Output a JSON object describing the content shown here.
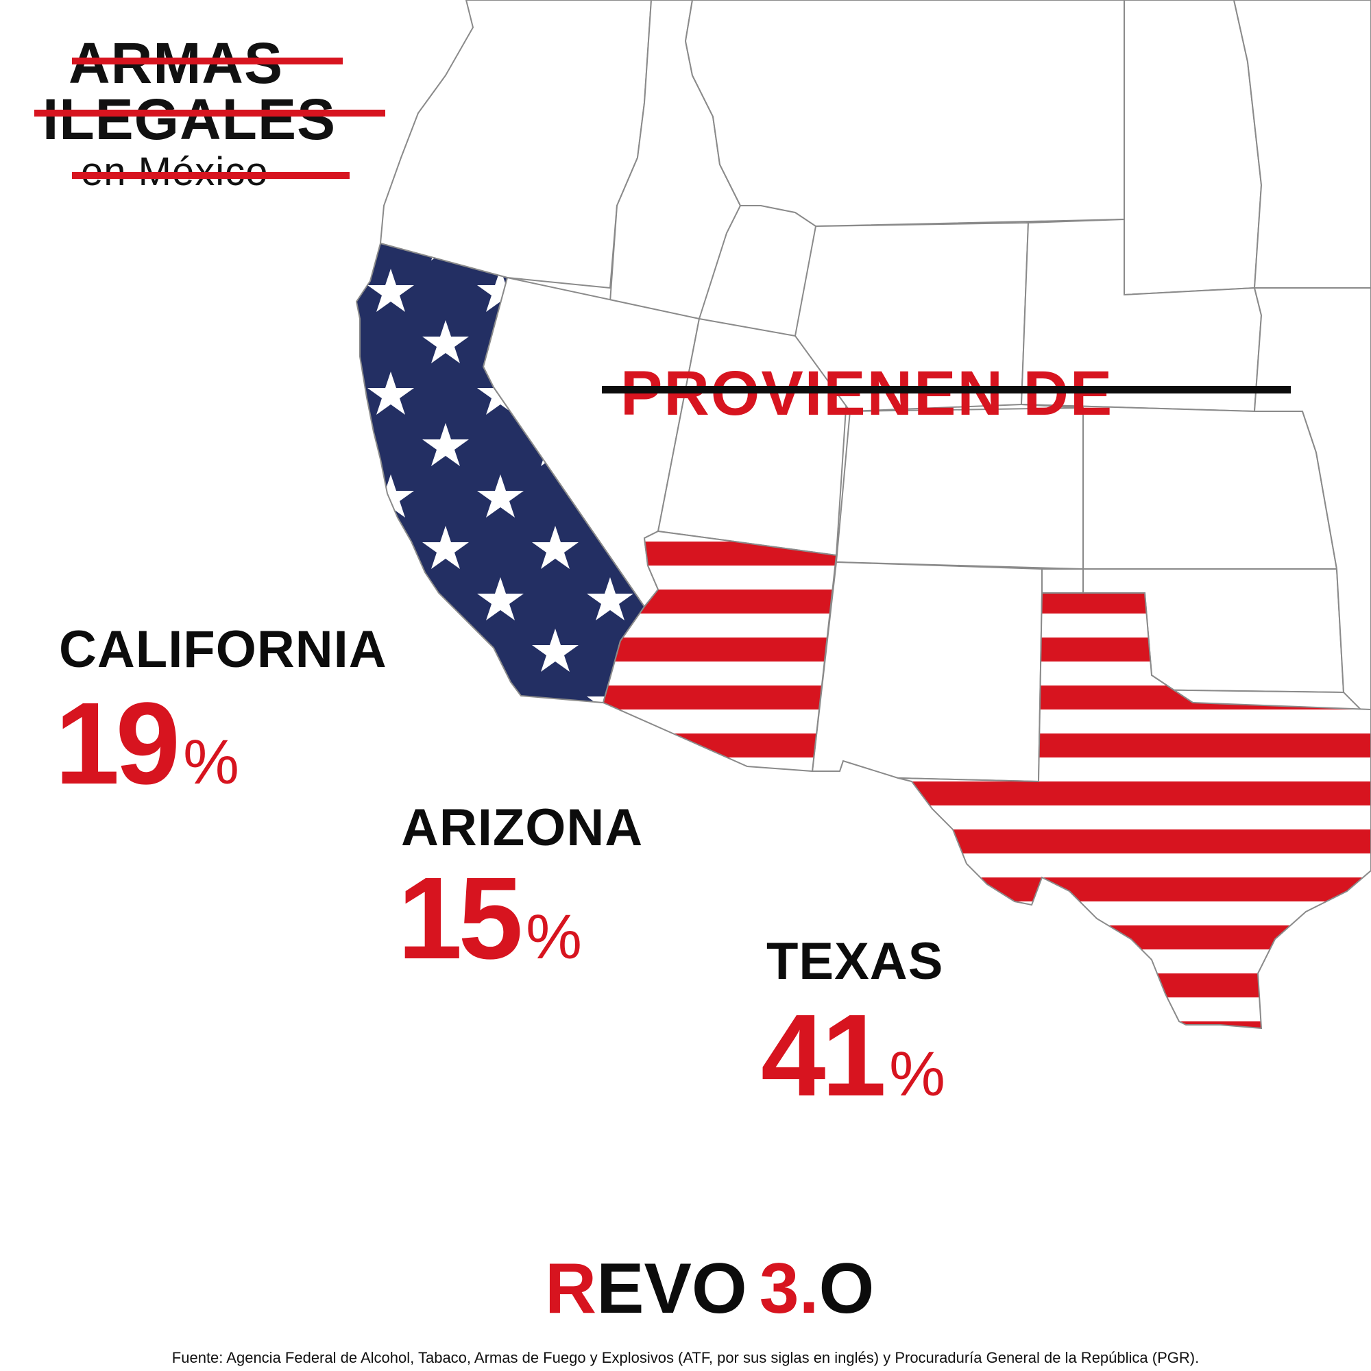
{
  "colors": {
    "red": "#d7141f",
    "navy": "#232f63",
    "black": "#111111",
    "state_border": "#8a8a8a",
    "white": "#ffffff"
  },
  "title": {
    "line1": "ARMAS",
    "line2": "ILEGALES",
    "line3": "en México"
  },
  "subtitle": "PROVIENEN DE",
  "states": [
    {
      "name": "CALIFORNIA",
      "value": "19",
      "unit": "%",
      "fill": "stars-pattern"
    },
    {
      "name": "ARIZONA",
      "value": "15",
      "unit": "%",
      "fill": "stripes-pattern"
    },
    {
      "name": "TEXAS",
      "value": "41",
      "unit": "%",
      "fill": "stripes-pattern"
    }
  ],
  "logo": {
    "part1": "R",
    "part2": "EV",
    "part3": "O",
    "part4": "3.",
    "part5": "O"
  },
  "source": "Fuente: Agencia Federal de Alcohol, Tabaco, Armas de Fuego y Explosivos (ATF, por sus siglas en inglés) y Procuraduría General de la República (PGR)."
}
